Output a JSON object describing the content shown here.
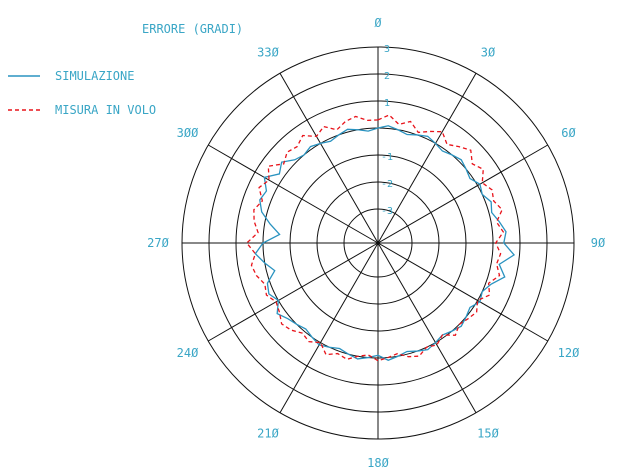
{
  "chart_data": {
    "type": "line",
    "polar": true,
    "title": "ERRORE (GRADI)",
    "angle_unit": "degrees",
    "angle_ticks": [
      0,
      30,
      60,
      90,
      120,
      150,
      180,
      210,
      240,
      270,
      300,
      330
    ],
    "angle_tick_labels": [
      "Ø",
      "3Ø",
      "6Ø",
      "9Ø",
      "12Ø",
      "15Ø",
      "18Ø",
      "21Ø",
      "24Ø",
      "27Ø",
      "3ØØ",
      "33Ø"
    ],
    "r_ticks": [
      -3,
      -2,
      -1,
      1,
      2,
      3
    ],
    "r_tick_labels": [
      "-3",
      "-2",
      "-1",
      "1",
      "2",
      "3"
    ],
    "rlim": [
      -3,
      3
    ],
    "legend_position": "top-left",
    "series": [
      {
        "name": "SIMULAZIONE",
        "color": "#2a93c0",
        "dash": "solid",
        "theta": [
          0,
          5,
          10,
          15,
          20,
          25,
          30,
          35,
          40,
          45,
          50,
          55,
          60,
          65,
          70,
          75,
          80,
          85,
          90,
          95,
          100,
          105,
          110,
          115,
          120,
          125,
          130,
          135,
          140,
          145,
          150,
          155,
          160,
          165,
          170,
          175,
          180,
          185,
          190,
          195,
          200,
          205,
          210,
          215,
          220,
          225,
          230,
          235,
          240,
          245,
          250,
          255,
          260,
          265,
          270,
          275,
          280,
          285,
          290,
          295,
          300,
          305,
          310,
          315,
          320,
          325,
          330,
          335,
          340,
          345,
          350,
          355,
          360
        ],
        "r": [
          0.0,
          0.1,
          0.0,
          -0.1,
          0.0,
          0.1,
          0.0,
          -0.1,
          0.0,
          0.1,
          0.0,
          -0.1,
          0.1,
          0.0,
          0.2,
          0.1,
          0.3,
          0.5,
          0.4,
          0.8,
          0.3,
          0.6,
          0.2,
          0.0,
          0.1,
          -0.1,
          0.0,
          0.1,
          0.0,
          -0.1,
          0.0,
          0.1,
          0.0,
          -0.1,
          0.0,
          0.1,
          -0.1,
          0.0,
          0.1,
          0.0,
          -0.1,
          0.0,
          0.1,
          0.0,
          -0.1,
          0.0,
          0.1,
          0.3,
          0.0,
          0.2,
          0.1,
          -0.3,
          0.0,
          0.3,
          0.0,
          -0.6,
          -0.2,
          0.2,
          0.4,
          0.3,
          0.6,
          0.2,
          0.4,
          0.1,
          0.0,
          0.1,
          0.0,
          -0.1,
          0.0,
          0.1,
          0.0,
          -0.1,
          0.0
        ]
      },
      {
        "name": "MISURA IN VOLO",
        "color": "#e8131a",
        "dash": "dashed",
        "theta": [
          0,
          5,
          10,
          15,
          20,
          25,
          30,
          35,
          40,
          45,
          50,
          55,
          60,
          65,
          70,
          75,
          80,
          85,
          90,
          95,
          100,
          105,
          110,
          115,
          120,
          125,
          130,
          135,
          140,
          145,
          150,
          155,
          160,
          165,
          170,
          175,
          180,
          185,
          190,
          195,
          200,
          205,
          210,
          215,
          220,
          225,
          230,
          235,
          240,
          245,
          250,
          255,
          260,
          265,
          270,
          275,
          280,
          285,
          290,
          295,
          300,
          305,
          310,
          315,
          320,
          325,
          330,
          335,
          340,
          345,
          350,
          355,
          360
        ],
        "r": [
          0.3,
          0.5,
          0.2,
          0.4,
          0.1,
          0.3,
          0.5,
          0.2,
          0.4,
          0.6,
          0.3,
          0.5,
          0.2,
          0.4,
          0.3,
          0.5,
          0.2,
          0.4,
          0.1,
          0.3,
          0.2,
          0.4,
          0.1,
          0.3,
          0.0,
          0.2,
          0.1,
          0.0,
          0.2,
          -0.1,
          0.1,
          0.0,
          0.2,
          0.1,
          -0.1,
          0.0,
          0.1,
          -0.1,
          0.0,
          0.2,
          0.1,
          0.3,
          0.0,
          0.2,
          0.1,
          0.3,
          0.4,
          0.2,
          0.1,
          0.3,
          0.2,
          0.4,
          0.5,
          0.3,
          0.6,
          0.2,
          0.4,
          0.5,
          0.3,
          0.6,
          0.4,
          0.7,
          0.3,
          0.5,
          0.4,
          0.6,
          0.3,
          0.5,
          0.2,
          0.4,
          0.5,
          0.3,
          0.3
        ]
      }
    ]
  }
}
